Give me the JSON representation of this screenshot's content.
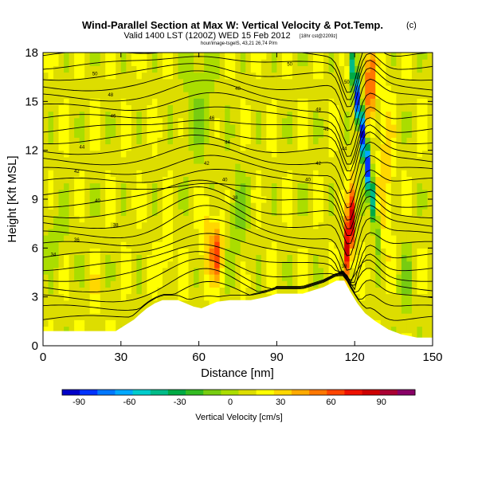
{
  "chart_data": {
    "type": "heatmap",
    "title": "Wind-Parallel Section at Max W: Vertical Velocity & Pot.Temp.",
    "title_mark": "(c)",
    "subtitle": "Valid 1400 LST (1200Z) WED 15 Feb 2012",
    "subtitle_extra": "[18hr cst@2209z]",
    "subtitle2": "hour/image-tsgelS, 43,21 26,74 P/m",
    "xlabel": "Distance [nm]",
    "ylabel": "Height [Kft MSL]",
    "xlim": [
      0,
      150
    ],
    "ylim": [
      0,
      18
    ],
    "x_ticks": [
      "0",
      "30",
      "60",
      "90",
      "120",
      "150"
    ],
    "y_ticks": [
      "0",
      "3",
      "6",
      "9",
      "12",
      "15",
      "18"
    ],
    "colorbar": {
      "label": "Vertical Velocity [cm/s]",
      "tick_labels": [
        "-90",
        "-60",
        "-30",
        "0",
        "30",
        "60",
        "90"
      ],
      "tick_values": [
        -90,
        -60,
        -30,
        0,
        30,
        60,
        90
      ],
      "range": [
        -100,
        110
      ],
      "colors": [
        "#0000c8",
        "#0033ff",
        "#0077ff",
        "#00a8ff",
        "#00cccc",
        "#00bb88",
        "#00aa44",
        "#33bb22",
        "#77cc11",
        "#aadd00",
        "#dddd00",
        "#ffff00",
        "#ffd700",
        "#ffaa00",
        "#ff7700",
        "#ff4400",
        "#ee1100",
        "#cc0000",
        "#aa0033",
        "#880066"
      ]
    },
    "contour_labels": [
      {
        "text": "50",
        "x": 20,
        "y": 16.7
      },
      {
        "text": "48",
        "x": 26,
        "y": 15.4
      },
      {
        "text": "46",
        "x": 27,
        "y": 14.1
      },
      {
        "text": "44",
        "x": 15,
        "y": 12.2
      },
      {
        "text": "42",
        "x": 13,
        "y": 10.7
      },
      {
        "text": "40",
        "x": 21,
        "y": 8.9
      },
      {
        "text": "38",
        "x": 28,
        "y": 7.4
      },
      {
        "text": "36",
        "x": 13,
        "y": 6.5
      },
      {
        "text": "34",
        "x": 4,
        "y": 5.6
      },
      {
        "text": "50",
        "x": 95,
        "y": 17.3
      },
      {
        "text": "48",
        "x": 75,
        "y": 15.8
      },
      {
        "text": "46",
        "x": 65,
        "y": 14.0
      },
      {
        "text": "44",
        "x": 71,
        "y": 12.5
      },
      {
        "text": "42",
        "x": 63,
        "y": 11.2
      },
      {
        "text": "40",
        "x": 70,
        "y": 10.2
      },
      {
        "text": "38",
        "x": 74,
        "y": 9.1
      },
      {
        "text": "50",
        "x": 117,
        "y": 16.2
      },
      {
        "text": "48",
        "x": 106,
        "y": 14.5
      },
      {
        "text": "46",
        "x": 109,
        "y": 13.3
      },
      {
        "text": "44",
        "x": 116,
        "y": 12.1
      },
      {
        "text": "42",
        "x": 106,
        "y": 11.2
      },
      {
        "text": "40",
        "x": 102,
        "y": 10.2
      },
      {
        "text": "38",
        "x": 116,
        "y": 4.9
      }
    ]
  }
}
